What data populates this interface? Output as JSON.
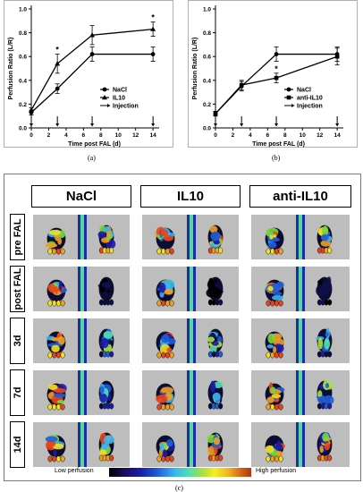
{
  "chart_data": [
    {
      "type": "line",
      "ylabel": "Perfusion Ratio (L/R)",
      "xlabel": "Time post FAL (d)",
      "x": [
        0,
        3,
        7,
        14
      ],
      "xticks": [
        "0",
        "2",
        "4",
        "6",
        "8",
        "10",
        "12",
        "14"
      ],
      "yticks": [
        "0.0",
        "0.2",
        "0.4",
        "0.6",
        "0.8",
        "1.0"
      ],
      "xlim": [
        0,
        14.5
      ],
      "ylim": [
        0,
        1.0
      ],
      "series": [
        {
          "name": "NaCl",
          "marker": "circle",
          "values": [
            0.13,
            0.33,
            0.62,
            0.62
          ],
          "errors": [
            0.02,
            0.04,
            0.06,
            0.06
          ]
        },
        {
          "name": "IL10",
          "marker": "triangle",
          "values": [
            0.15,
            0.54,
            0.78,
            0.83
          ],
          "errors": [
            0.02,
            0.08,
            0.08,
            0.06
          ]
        }
      ],
      "injection_legend": "Injection",
      "injection_days": [
        0,
        3,
        7,
        14
      ],
      "significance": [
        {
          "x": 3,
          "label": "*"
        },
        {
          "x": 14,
          "label": "*"
        }
      ],
      "legend_position": "bottom-right",
      "panel_label": "(a)"
    },
    {
      "type": "line",
      "ylabel": "Perfusion Ratio (L/R)",
      "xlabel": "Time post FAL (d)",
      "x": [
        0,
        3,
        7,
        14
      ],
      "xticks": [
        "0",
        "2",
        "4",
        "6",
        "8",
        "10",
        "12",
        "14"
      ],
      "yticks": [
        "0.0",
        "0.2",
        "0.4",
        "0.6",
        "0.8",
        "1.0"
      ],
      "xlim": [
        0,
        14.5
      ],
      "ylim": [
        0,
        1.0
      ],
      "series": [
        {
          "name": "NaCl",
          "marker": "circle",
          "values": [
            0.12,
            0.35,
            0.62,
            0.62
          ],
          "errors": [
            0.02,
            0.04,
            0.06,
            0.06
          ]
        },
        {
          "name": "anti-IL10",
          "marker": "square",
          "values": [
            0.12,
            0.36,
            0.42,
            0.6
          ],
          "errors": [
            0.02,
            0.04,
            0.04,
            0.07
          ]
        }
      ],
      "injection_legend": "Injection",
      "injection_days": [
        0,
        3,
        7,
        14
      ],
      "significance": [
        {
          "x": 7,
          "label": "*"
        }
      ],
      "legend_position": "bottom-right",
      "panel_label": "(b)"
    }
  ],
  "imaging_panel": {
    "columns": [
      "NaCl",
      "IL10",
      "anti-IL10"
    ],
    "rows": [
      "pre FAL",
      "post FAL",
      "3d",
      "7d",
      "14d"
    ],
    "colorbar_low": "Low perfusion",
    "colorbar_high": "High perfusion",
    "panel_label": "(c)"
  }
}
